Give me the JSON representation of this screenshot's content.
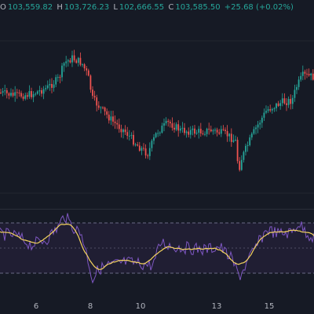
{
  "ohlc": {
    "open_label": "O",
    "open_value": "103,559.82",
    "high_label": "H",
    "high_value": "103,726.23",
    "low_label": "L",
    "low_value": "102,666.55",
    "close_label": "C",
    "close_value": "103,585.50",
    "change_value": "+25.68 (+0.02%)"
  },
  "x_axis": {
    "ticks": [
      {
        "label": "6"
      },
      {
        "label": "8"
      },
      {
        "label": "10"
      },
      {
        "label": "13"
      },
      {
        "label": "15"
      }
    ]
  },
  "colors": {
    "background": "#161a25",
    "up": "#26a69a",
    "down": "#ef5350",
    "rsi_line": "#7e57c2",
    "rsi_ma": "#f4d35e",
    "rsi_band": "#2a2240",
    "axis_text": "#b2b5be"
  }
}
